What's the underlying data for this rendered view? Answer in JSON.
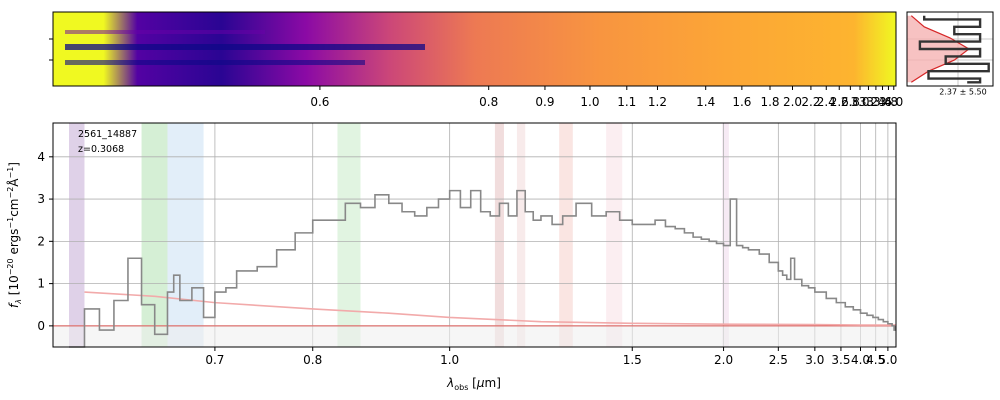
{
  "chart_data": [
    {
      "type": "heatmap",
      "name": "2d-spectrum",
      "x_tick_labels": [
        "0.6",
        "0.8",
        "0.9",
        "1.0",
        "1.1",
        "1.2",
        "1.4",
        "1.6",
        "1.8",
        "2.0",
        "2.2",
        "2.4",
        "2.6",
        "2.8",
        "3.0",
        "3.2",
        "3.4",
        "3.6",
        "3.8",
        "4.0"
      ],
      "colormap": "plasma",
      "grid": false
    },
    {
      "type": "line",
      "name": "spatial-profile",
      "annotation": "2.37 ± 5.50",
      "colors": {
        "profile": "#333333",
        "model": "#d62728",
        "fill": "#f5b3b3"
      },
      "profile": [
        [
          0.05,
          0.2
        ],
        [
          0.1,
          0.85
        ],
        [
          0.2,
          0.55
        ],
        [
          0.3,
          0.85
        ],
        [
          0.4,
          0.15
        ],
        [
          0.5,
          0.85
        ],
        [
          0.6,
          0.45
        ],
        [
          0.7,
          0.95
        ],
        [
          0.8,
          0.25
        ],
        [
          0.9,
          0.85
        ],
        [
          0.95,
          0.7
        ]
      ],
      "model": [
        [
          0.05,
          0.05
        ],
        [
          0.2,
          0.2
        ],
        [
          0.35,
          0.5
        ],
        [
          0.5,
          0.72
        ],
        [
          0.65,
          0.55
        ],
        [
          0.8,
          0.25
        ],
        [
          0.95,
          0.05
        ]
      ]
    },
    {
      "type": "line",
      "name": "1d-spectrum",
      "object_id": "2561_14887",
      "redshift": "z=0.3068",
      "xlabel_parts": [
        "λ",
        "obs",
        " [",
        "μ",
        "m]"
      ],
      "ylabel_parts": [
        "f",
        "λ",
        " [10",
        "−20",
        " ergs",
        "−1",
        "cm",
        "−2",
        "Å",
        "−1",
        "]"
      ],
      "xlim": [
        0.58,
        5.4
      ],
      "ylim": [
        -0.5,
        4.8
      ],
      "x_scale": "reciprocal",
      "x_ticks": [
        0.7,
        0.8,
        1.0,
        1.5,
        2.0,
        2.5,
        3.0,
        3.5,
        4.0,
        4.5,
        5.0
      ],
      "x_tick_labels": [
        "0.7",
        "0.8",
        "1.0",
        "1.5",
        "2.0",
        "2.5",
        "3.0",
        "3.5",
        "4.0",
        "4.5",
        "5.0"
      ],
      "y_ticks": [
        0,
        1,
        2,
        3,
        4
      ],
      "y_tick_labels": [
        "0",
        "1",
        "2",
        "3",
        "4"
      ],
      "grid": true,
      "colors": {
        "flux": "#888888",
        "error": "#f2aaaa",
        "zero_line": "#d9534f"
      },
      "bands": [
        {
          "x": [
            0.59,
            0.6
          ],
          "color": "#c9b3d9"
        },
        {
          "x": [
            0.64,
            0.66
          ],
          "color": "#b9e4b9"
        },
        {
          "x": [
            0.66,
            0.69
          ],
          "color": "#cfe3f5"
        },
        {
          "x": [
            0.83,
            0.86
          ],
          "color": "#cdeccd"
        },
        {
          "x": [
            1.09,
            1.11
          ],
          "color": "#e7c7c7"
        },
        {
          "x": [
            1.14,
            1.16
          ],
          "color": "#f3dede"
        },
        {
          "x": [
            1.25,
            1.29
          ],
          "color": "#f6d3cf"
        },
        {
          "x": [
            1.4,
            1.46
          ],
          "color": "#f9e2e8"
        },
        {
          "x": [
            1.99,
            2.04
          ],
          "color": "#f0dcec"
        }
      ],
      "series": [
        {
          "values": [
            [
              0.59,
              -0.5
            ],
            [
              0.6,
              0.4
            ],
            [
              0.61,
              -0.1
            ],
            [
              0.62,
              0.6
            ],
            [
              0.63,
              1.6
            ],
            [
              0.64,
              0.5
            ],
            [
              0.65,
              -0.2
            ],
            [
              0.66,
              0.8
            ],
            [
              0.665,
              1.2
            ],
            [
              0.67,
              0.6
            ],
            [
              0.68,
              0.9
            ],
            [
              0.69,
              0.2
            ],
            [
              0.7,
              0.8
            ],
            [
              0.71,
              0.9
            ],
            [
              0.72,
              1.3
            ],
            [
              0.74,
              1.4
            ],
            [
              0.76,
              1.8
            ],
            [
              0.78,
              2.2
            ],
            [
              0.8,
              2.5
            ],
            [
              0.82,
              2.5
            ],
            [
              0.84,
              2.9
            ],
            [
              0.86,
              2.8
            ],
            [
              0.88,
              3.1
            ],
            [
              0.9,
              2.9
            ],
            [
              0.92,
              2.7
            ],
            [
              0.94,
              2.6
            ],
            [
              0.96,
              2.8
            ],
            [
              0.98,
              3.0
            ],
            [
              1.0,
              3.2
            ],
            [
              1.02,
              2.8
            ],
            [
              1.04,
              3.2
            ],
            [
              1.06,
              2.7
            ],
            [
              1.08,
              2.6
            ],
            [
              1.1,
              2.9
            ],
            [
              1.12,
              2.6
            ],
            [
              1.14,
              3.2
            ],
            [
              1.16,
              2.7
            ],
            [
              1.18,
              2.5
            ],
            [
              1.2,
              2.6
            ],
            [
              1.23,
              2.4
            ],
            [
              1.26,
              2.6
            ],
            [
              1.3,
              2.9
            ],
            [
              1.35,
              2.6
            ],
            [
              1.4,
              2.7
            ],
            [
              1.45,
              2.5
            ],
            [
              1.5,
              2.4
            ],
            [
              1.55,
              2.4
            ],
            [
              1.6,
              2.5
            ],
            [
              1.65,
              2.35
            ],
            [
              1.7,
              2.3
            ],
            [
              1.75,
              2.2
            ],
            [
              1.8,
              2.1
            ],
            [
              1.85,
              2.05
            ],
            [
              1.9,
              2.0
            ],
            [
              1.95,
              1.95
            ],
            [
              2.0,
              1.9
            ],
            [
              2.05,
              3.0
            ],
            [
              2.1,
              1.9
            ],
            [
              2.15,
              1.85
            ],
            [
              2.2,
              1.8
            ],
            [
              2.3,
              1.7
            ],
            [
              2.4,
              1.5
            ],
            [
              2.5,
              1.3
            ],
            [
              2.55,
              1.2
            ],
            [
              2.6,
              1.1
            ],
            [
              2.65,
              1.6
            ],
            [
              2.7,
              1.1
            ],
            [
              2.8,
              0.95
            ],
            [
              2.9,
              0.9
            ],
            [
              3.0,
              0.8
            ],
            [
              3.2,
              0.65
            ],
            [
              3.4,
              0.55
            ],
            [
              3.6,
              0.45
            ],
            [
              3.8,
              0.38
            ],
            [
              4.0,
              0.3
            ],
            [
              4.2,
              0.25
            ],
            [
              4.4,
              0.2
            ],
            [
              4.6,
              0.15
            ],
            [
              4.8,
              0.1
            ],
            [
              5.0,
              0.05
            ],
            [
              5.2,
              0.0
            ],
            [
              5.3,
              -0.1
            ],
            [
              5.35,
              0.0
            ]
          ]
        },
        {
          "values": [
            [
              0.6,
              0.8
            ],
            [
              0.65,
              0.7
            ],
            [
              0.7,
              0.55
            ],
            [
              0.8,
              0.4
            ],
            [
              0.9,
              0.3
            ],
            [
              1.0,
              0.2
            ],
            [
              1.2,
              0.1
            ],
            [
              1.5,
              0.06
            ],
            [
              2.0,
              0.04
            ],
            [
              3.0,
              0.03
            ],
            [
              4.0,
              0.02
            ],
            [
              5.0,
              0.02
            ],
            [
              5.4,
              0.02
            ]
          ]
        }
      ]
    }
  ]
}
